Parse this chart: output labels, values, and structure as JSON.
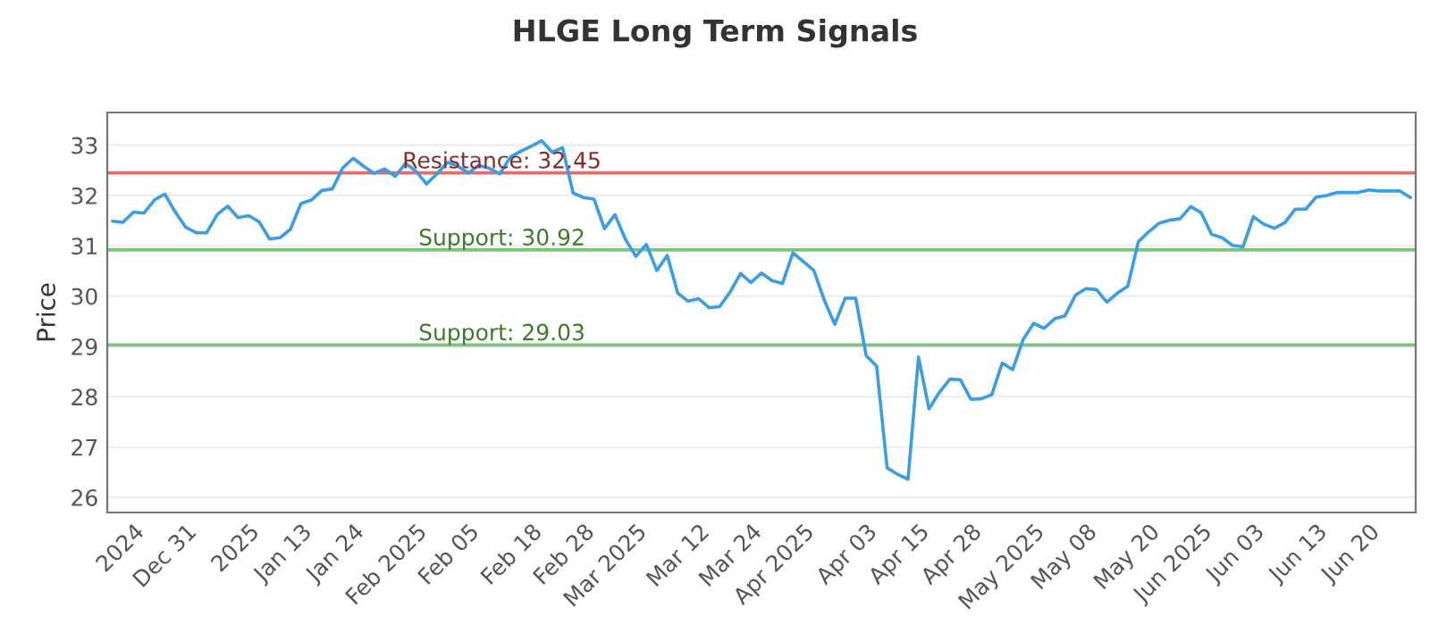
{
  "chart_data": {
    "type": "line",
    "title": "HLGE Long Term Signals",
    "ylabel": "Price",
    "categories": [
      null,
      null,
      "2024",
      null,
      null,
      null,
      null,
      "Dec 31",
      null,
      null,
      null,
      null,
      null,
      "2025",
      null,
      null,
      null,
      null,
      "Jan 13",
      null,
      null,
      null,
      null,
      "Jan 24",
      null,
      null,
      null,
      null,
      null,
      "Feb 2025",
      null,
      null,
      null,
      null,
      "Feb 05",
      null,
      null,
      null,
      null,
      null,
      "Feb 18",
      null,
      null,
      null,
      null,
      "Feb 28",
      null,
      null,
      null,
      null,
      "Mar 2025",
      null,
      null,
      null,
      null,
      null,
      "Mar 12",
      null,
      null,
      null,
      null,
      "Mar 24",
      null,
      null,
      null,
      null,
      "Apr 2025",
      null,
      null,
      null,
      null,
      null,
      "Apr 03",
      null,
      null,
      null,
      null,
      "Apr 15",
      null,
      null,
      null,
      null,
      "Apr 28",
      null,
      null,
      null,
      null,
      null,
      "May 2025",
      null,
      null,
      null,
      null,
      "May 08",
      null,
      null,
      null,
      null,
      null,
      "May 20",
      null,
      null,
      null,
      null,
      "Jun 2025",
      null,
      null,
      null,
      null,
      "Jun 03",
      null,
      null,
      null,
      null,
      null,
      "Jun 13",
      null,
      null,
      null,
      null,
      "Jun 20",
      null,
      null,
      null,
      null
    ],
    "series": [
      {
        "color": "#3a9ee6",
        "values": [
          31.49,
          31.47,
          31.67,
          31.65,
          31.91,
          32.03,
          31.67,
          31.37,
          31.26,
          31.26,
          31.62,
          31.79,
          31.56,
          31.6,
          31.48,
          31.14,
          31.16,
          31.33,
          31.84,
          31.91,
          32.1,
          32.13,
          32.55,
          32.74,
          32.58,
          32.44,
          32.53,
          32.38,
          32.64,
          32.48,
          32.23,
          32.43,
          32.66,
          32.58,
          32.45,
          32.6,
          32.54,
          32.43,
          32.76,
          32.88,
          32.98,
          33.09,
          32.86,
          32.95,
          32.05,
          31.96,
          31.93,
          31.34,
          31.62,
          31.13,
          30.79,
          31.03,
          30.51,
          30.81,
          30.06,
          29.9,
          29.95,
          29.77,
          29.79,
          30.08,
          30.45,
          30.27,
          30.46,
          30.31,
          30.25,
          30.86,
          30.69,
          30.51,
          29.92,
          29.44,
          29.96,
          29.96,
          28.82,
          28.61,
          26.59,
          26.46,
          26.36,
          28.79,
          27.76,
          28.09,
          28.35,
          28.34,
          27.95,
          27.96,
          28.04,
          28.67,
          28.54,
          29.14,
          29.46,
          29.36,
          29.55,
          29.61,
          30.02,
          30.15,
          30.13,
          29.88,
          30.06,
          30.2,
          31.08,
          31.28,
          31.45,
          31.51,
          31.54,
          31.78,
          31.66,
          31.23,
          31.16,
          31.01,
          30.98,
          31.58,
          31.43,
          31.35,
          31.46,
          31.73,
          31.73,
          31.97,
          32.0,
          32.06,
          32.06,
          32.06,
          32.11,
          32.09,
          32.09,
          32.09,
          31.96
        ]
      }
    ],
    "ylim": [
      25.7,
      33.65
    ],
    "yticks": [
      26,
      27,
      28,
      29,
      30,
      31,
      32,
      33
    ],
    "grid": "y",
    "ref_lines": [
      {
        "axis": "y",
        "value": 32.45,
        "label": "Resistance: 32.45",
        "color": "#e07070"
      },
      {
        "axis": "y",
        "value": 30.92,
        "label": "Support: 30.92",
        "color": "#7cc47c"
      },
      {
        "axis": "y",
        "value": 29.03,
        "label": "Support: 29.03",
        "color": "#7cc47c"
      }
    ]
  }
}
